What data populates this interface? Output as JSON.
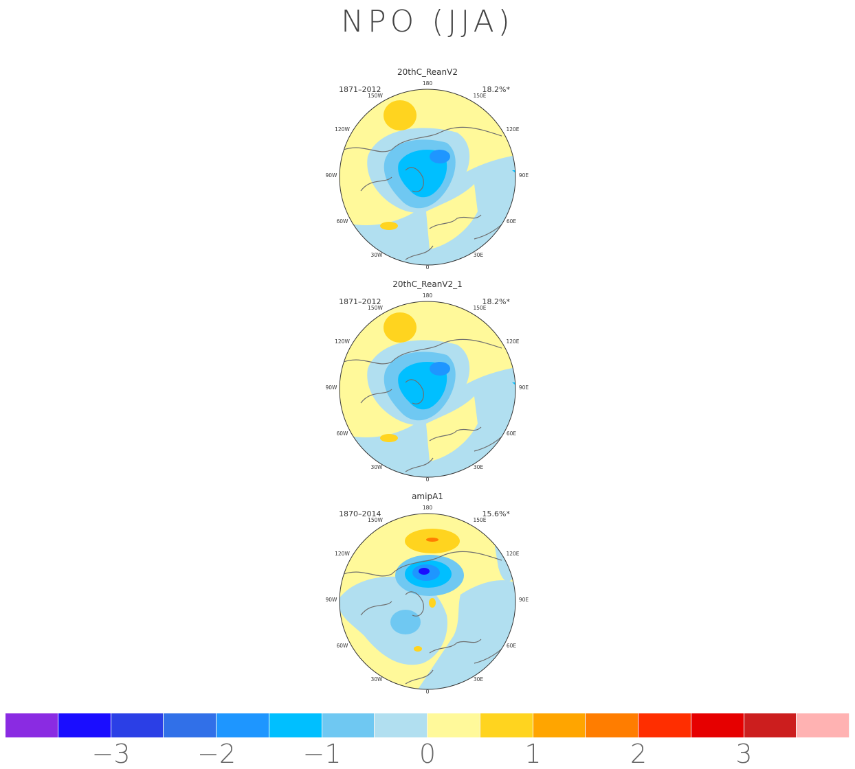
{
  "title": "NPO (JJA)",
  "panels": [
    {
      "name": "20thC_ReanV2",
      "period": "1871–2012",
      "variance": "18.2%*"
    },
    {
      "name": "20thC_ReanV2_1",
      "period": "1871–2012",
      "variance": "18.2%*"
    },
    {
      "name": "amipA1",
      "period": "1870–2014",
      "variance": "15.6%*"
    }
  ],
  "longitude_labels": [
    "180",
    "150W",
    "150E",
    "120W",
    "120E",
    "90W",
    "90E",
    "60W",
    "60E",
    "30W",
    "30E",
    "0"
  ],
  "colorbar": {
    "colors": [
      "#8a2be2",
      "#1a0dff",
      "#2b3fe6",
      "#3170e8",
      "#1e96ff",
      "#00bfff",
      "#6fc8f2",
      "#b1dff0",
      "#fff99a",
      "#ffd41f",
      "#ffa500",
      "#ff7d00",
      "#ff2e00",
      "#e60000",
      "#cc1e1e",
      "#ffb2b2"
    ],
    "tick_labels": [
      "−3",
      "−2",
      "−1",
      "0",
      "1",
      "2",
      "3"
    ]
  },
  "chart_data": {
    "type": "heatmap",
    "title": "NPO (JJA)",
    "projection": "north polar stereographic",
    "colorbar_levels": [
      -3.5,
      -3,
      -2.5,
      -2,
      -1.5,
      -1,
      -0.5,
      0,
      0.5,
      1,
      1.5,
      2,
      2.5,
      3,
      3.5
    ],
    "panels": [
      {
        "name": "20thC_ReanV2",
        "period": "1871–2012",
        "explained_variance_percent": 18.2,
        "significant": true
      },
      {
        "name": "20thC_ReanV2_1",
        "period": "1871–2012",
        "explained_variance_percent": 18.2,
        "significant": true
      },
      {
        "name": "amipA1",
        "period": "1870–2014",
        "explained_variance_percent": 15.6,
        "significant": true
      }
    ]
  }
}
